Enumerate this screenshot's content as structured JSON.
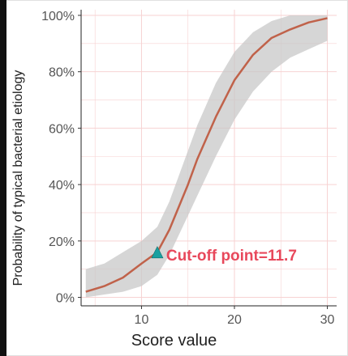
{
  "chart_data": {
    "type": "line",
    "title": "",
    "xlabel": "Score value",
    "ylabel": "Probability of typical bacterial etiology",
    "xlim": [
      3.5,
      31
    ],
    "ylim": [
      -3,
      102
    ],
    "x_ticks": [
      10,
      20,
      30
    ],
    "x_tick_labels": [
      "10",
      "20",
      "30"
    ],
    "y_ticks": [
      0,
      20,
      40,
      60,
      80,
      100
    ],
    "y_tick_labels": [
      "0%",
      "20%",
      "40%",
      "60%",
      "80%",
      "100%"
    ],
    "grid": true,
    "series": [
      {
        "x": [
          4,
          6,
          8,
          10,
          11.7,
          13,
          14,
          15,
          16,
          18,
          20,
          22,
          24,
          26,
          28,
          30
        ],
        "y": [
          2,
          4,
          7,
          12,
          16,
          24,
          32,
          40,
          49,
          64,
          77,
          86,
          92,
          95,
          97.5,
          99
        ],
        "lower": [
          0,
          1,
          2,
          4,
          8,
          15,
          22,
          29,
          36,
          50,
          63,
          73,
          80,
          85,
          88,
          91
        ],
        "upper": [
          10,
          12,
          16,
          20,
          25,
          34,
          43,
          52,
          61,
          76,
          87,
          94,
          98,
          100,
          100,
          100
        ],
        "color": "#c0624a",
        "band_color": "#c8c8c8"
      }
    ],
    "annotations": [
      {
        "x": 11.7,
        "y": 16,
        "marker": "triangle",
        "marker_color": "#1aa0a0",
        "text": "Cut-off point=11.7",
        "text_color": "#e8485b"
      }
    ]
  }
}
